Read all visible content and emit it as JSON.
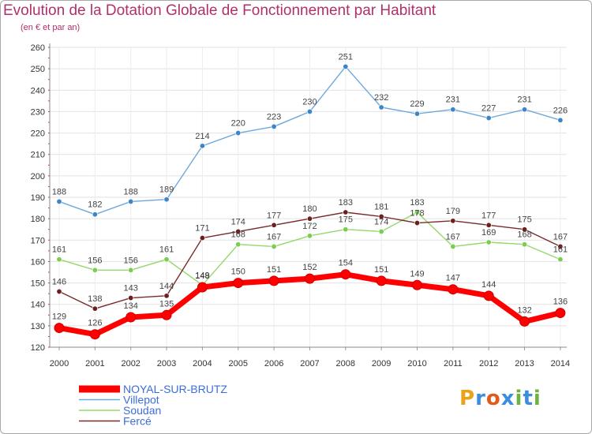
{
  "header": {
    "title": "Evolution de la Dotation Globale de Fonctionnement par Habitant",
    "subtitle": "(en € et par an)"
  },
  "logo": {
    "letters": [
      "P",
      "r",
      "o",
      "x",
      "i",
      "t",
      "i"
    ],
    "colors": [
      "#e8a317",
      "#3c8dde",
      "#e05a1c",
      "#3c8dde",
      "#6cb33f",
      "#3c8dde",
      "#6cb33f"
    ]
  },
  "chart_data": {
    "type": "line",
    "title": "Evolution de la Dotation Globale de Fonctionnement par Habitant",
    "subtitle": "(en € et par an)",
    "xlabel": "",
    "ylabel": "",
    "ylim": [
      120,
      260
    ],
    "yticks": [
      120,
      130,
      140,
      150,
      160,
      170,
      180,
      190,
      200,
      210,
      220,
      230,
      240,
      250,
      260
    ],
    "grid": true,
    "legend_position": "bottom-left",
    "categories": [
      "2000",
      "2001",
      "2002",
      "2003",
      "2004",
      "2005",
      "2006",
      "2007",
      "2008",
      "2009",
      "2010",
      "2011",
      "2012",
      "2013",
      "2014"
    ],
    "series": [
      {
        "name": "NOYAL-SUR-BRUTZ",
        "color": "#ff0000",
        "marker_color": "#ff0000",
        "values": [
          129,
          126,
          134,
          135,
          148,
          150,
          151,
          152,
          154,
          151,
          149,
          147,
          144,
          132,
          136
        ]
      },
      {
        "name": "Villepot",
        "color": "#6fa8dc",
        "marker_color": "#3d85c6",
        "values": [
          188,
          182,
          188,
          189,
          214,
          220,
          223,
          230,
          251,
          232,
          229,
          231,
          227,
          231,
          226
        ]
      },
      {
        "name": "Soudan",
        "color": "#93d86a",
        "marker_color": "#7ccc4f",
        "values": [
          161,
          156,
          156,
          161,
          149,
          168,
          167,
          172,
          175,
          174,
          183,
          167,
          169,
          168,
          161
        ]
      },
      {
        "name": "Fercé",
        "color": "#7a2a2a",
        "marker_color": "#6b1f1f",
        "values": [
          146,
          138,
          143,
          144,
          171,
          174,
          177,
          180,
          183,
          181,
          178,
          179,
          177,
          175,
          167
        ]
      }
    ]
  }
}
